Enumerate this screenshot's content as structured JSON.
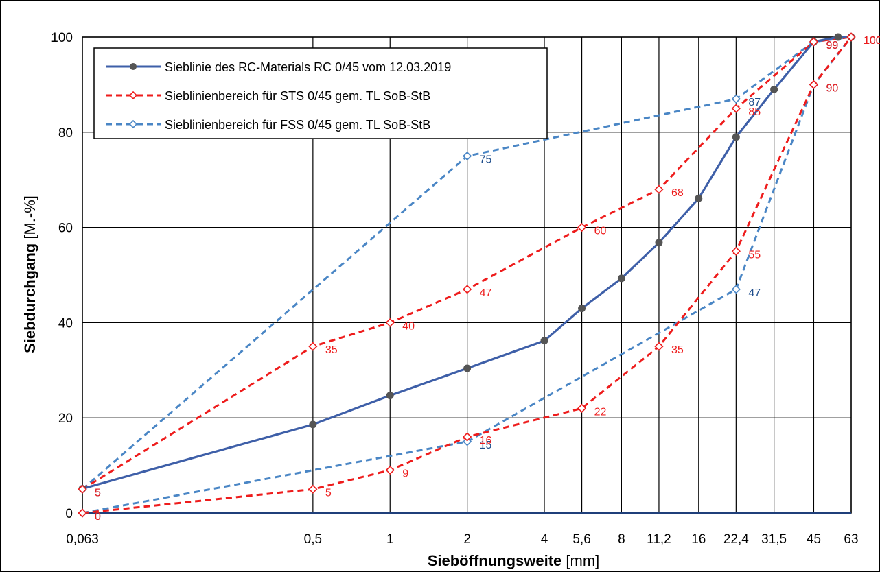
{
  "chart_data": {
    "type": "line",
    "x_categories": [
      "0,063",
      "0,5",
      "1",
      "2",
      "4",
      "5,6",
      "8",
      "11,2",
      "16",
      "22,4",
      "31,5",
      "45",
      "63"
    ],
    "x_values": [
      0.063,
      0.5,
      1,
      2,
      4,
      5.6,
      8,
      11.2,
      16,
      22.4,
      31.5,
      45,
      63
    ],
    "x_scale": "log",
    "ylim": [
      0,
      100
    ],
    "yticks": [
      0,
      20,
      40,
      60,
      80,
      100
    ],
    "grid": true,
    "legend_position": "top-left",
    "xlabel": {
      "bold": "Sieböffnungsweite",
      "normal": " [mm]"
    },
    "ylabel": {
      "bold": "Siebdurchgang",
      "normal": " [M.-%]"
    },
    "series": [
      {
        "name": "Sieblinie des RC-Materials RC 0/45 vom 12.03.2019",
        "color": "#3e5fa8",
        "style": "solid",
        "marker": "circle",
        "points": [
          [
            0.063,
            5.1
          ],
          [
            0.5,
            18.6
          ],
          [
            1,
            24.7
          ],
          [
            2,
            30.4
          ],
          [
            4,
            36.2
          ],
          [
            5.6,
            43.0
          ],
          [
            8,
            49.3
          ],
          [
            11.2,
            56.8
          ],
          [
            16,
            66.1
          ],
          [
            22.4,
            79.0
          ],
          [
            31.5,
            89.0
          ],
          [
            45,
            99.0
          ],
          [
            56,
            100
          ],
          [
            63,
            100
          ]
        ]
      },
      {
        "name": "Sieblinienbereich für STS 0/45 gem. TL SoB-StB",
        "color": "#ee1c1c",
        "label_color": "#ee1c1c",
        "style": "dashed",
        "marker": "diamond",
        "upper": [
          [
            0.063,
            5,
            "5"
          ],
          [
            0.5,
            35,
            "35"
          ],
          [
            1,
            40,
            "40"
          ],
          [
            2,
            47,
            "47"
          ],
          [
            5.6,
            60,
            "60"
          ],
          [
            11.2,
            68,
            "68"
          ],
          [
            22.4,
            85,
            "85"
          ],
          [
            45,
            99,
            "99"
          ],
          [
            63,
            100,
            "100"
          ]
        ],
        "lower": [
          [
            0.063,
            0,
            "0"
          ],
          [
            0.5,
            5,
            "5"
          ],
          [
            1,
            9,
            "9"
          ],
          [
            2,
            16,
            "16"
          ],
          [
            5.6,
            22,
            "22"
          ],
          [
            11.2,
            35,
            "35"
          ],
          [
            22.4,
            55,
            "55"
          ],
          [
            45,
            90,
            "90"
          ],
          [
            63,
            100,
            "100"
          ]
        ]
      },
      {
        "name": "Sieblinienbereich für FSS 0/45 gem. TL SoB-StB",
        "color": "#4a86c5",
        "label_color": "#1f4e8c",
        "style": "dashed",
        "marker": "diamond",
        "upper": [
          [
            0.063,
            5,
            "5"
          ],
          [
            2,
            75,
            "75"
          ],
          [
            22.4,
            87,
            "87"
          ],
          [
            45,
            99,
            "99"
          ],
          [
            63,
            100,
            "100"
          ]
        ],
        "lower": [
          [
            0.063,
            0,
            "0"
          ],
          [
            2,
            15,
            "15"
          ],
          [
            22.4,
            47,
            "47"
          ],
          [
            45,
            90,
            "90"
          ],
          [
            63,
            100,
            "100"
          ]
        ]
      }
    ]
  }
}
